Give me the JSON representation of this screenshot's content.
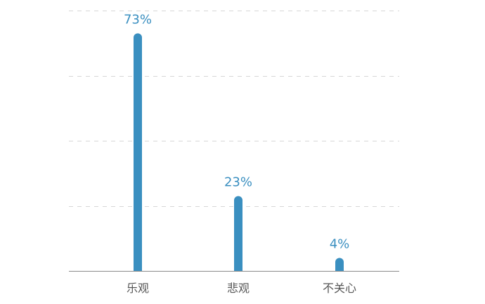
{
  "chart_data": {
    "type": "bar",
    "categories": [
      "乐观",
      "悲观",
      "不关心"
    ],
    "values": [
      73,
      23,
      4
    ],
    "data_labels": [
      "73%",
      "23%",
      "4%"
    ],
    "title": "",
    "xlabel": "",
    "ylabel": "",
    "ylim": [
      0,
      80
    ],
    "grid": true,
    "legend": "none"
  },
  "colors": {
    "bar": "#3a8fc0",
    "label": "#3a8fc0",
    "grid": "#d7d7d7",
    "axis": "#8a8a8a",
    "category_text": "#555555"
  }
}
